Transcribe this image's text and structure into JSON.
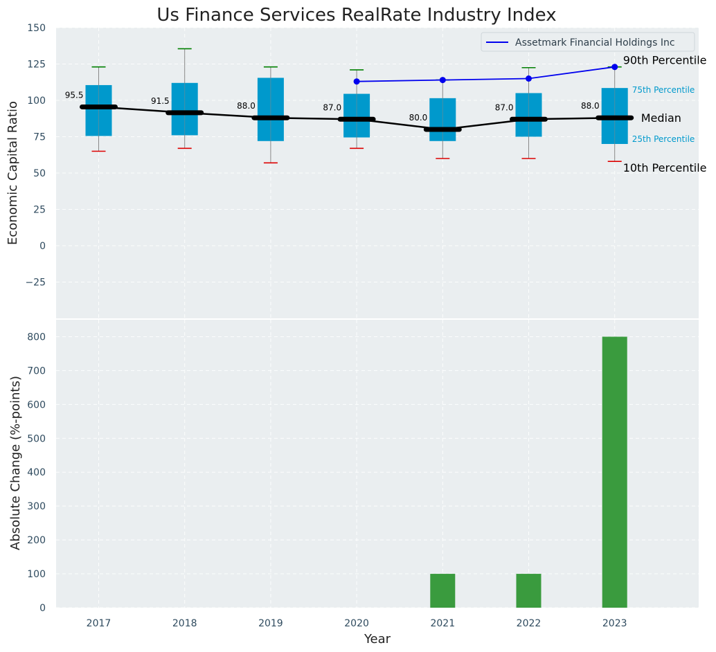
{
  "chart_data": [
    {
      "type": "box",
      "title": "Us Finance Services RealRate Industry Index",
      "ylabel": "Economic Capital Ratio",
      "ylim": [
        -50,
        150
      ],
      "yticks": [
        -25,
        0,
        25,
        50,
        75,
        100,
        125,
        150
      ],
      "categories": [
        "2017",
        "2018",
        "2019",
        "2020",
        "2021",
        "2022",
        "2023"
      ],
      "p10": [
        65,
        67,
        57,
        67,
        60,
        60,
        58
      ],
      "p25": [
        75.5,
        76,
        72,
        74.5,
        72,
        75,
        70
      ],
      "median": [
        95.5,
        91.5,
        88.0,
        87.0,
        80.0,
        87.0,
        88.0
      ],
      "p75": [
        110.5,
        112,
        115.5,
        104.5,
        101.5,
        105,
        108.5
      ],
      "p90": [
        123,
        135.5,
        123,
        121,
        114,
        122.5,
        123
      ],
      "median_labels": [
        "95.5",
        "91.5",
        "88.0",
        "87.0",
        "80.0",
        "87.0",
        "88.0"
      ],
      "series": [
        {
          "name": "Assetmark Financial Holdings Inc",
          "x": [
            "2020",
            "2021",
            "2022",
            "2023"
          ],
          "values": [
            113,
            114,
            115,
            123
          ],
          "color": "#0000ee"
        }
      ],
      "annotations": {
        "p90": "90th Percentile",
        "p75": "75th Percentile",
        "median": "Median",
        "p25": "25th Percentile",
        "p10": "10th Percentile"
      },
      "legend": "top-right",
      "grid": true
    },
    {
      "type": "bar",
      "xlabel": "Year",
      "ylabel": "Absolute Change (%-points)",
      "ylim": [
        0,
        850
      ],
      "yticks": [
        0,
        100,
        200,
        300,
        400,
        500,
        600,
        700,
        800
      ],
      "categories": [
        "2017",
        "2018",
        "2019",
        "2020",
        "2021",
        "2022",
        "2023"
      ],
      "values": [
        0,
        0,
        0,
        0,
        100,
        100,
        800
      ],
      "color": "#3a9b3e",
      "grid": true
    }
  ],
  "colors": {
    "box": "#0099cc",
    "median": "#000000",
    "p90_cap": "#008000",
    "p10_cap": "#dd0000",
    "whisker": "#888888",
    "plot_bg": "#eaeef0",
    "percentile_label": "#0099cc"
  }
}
